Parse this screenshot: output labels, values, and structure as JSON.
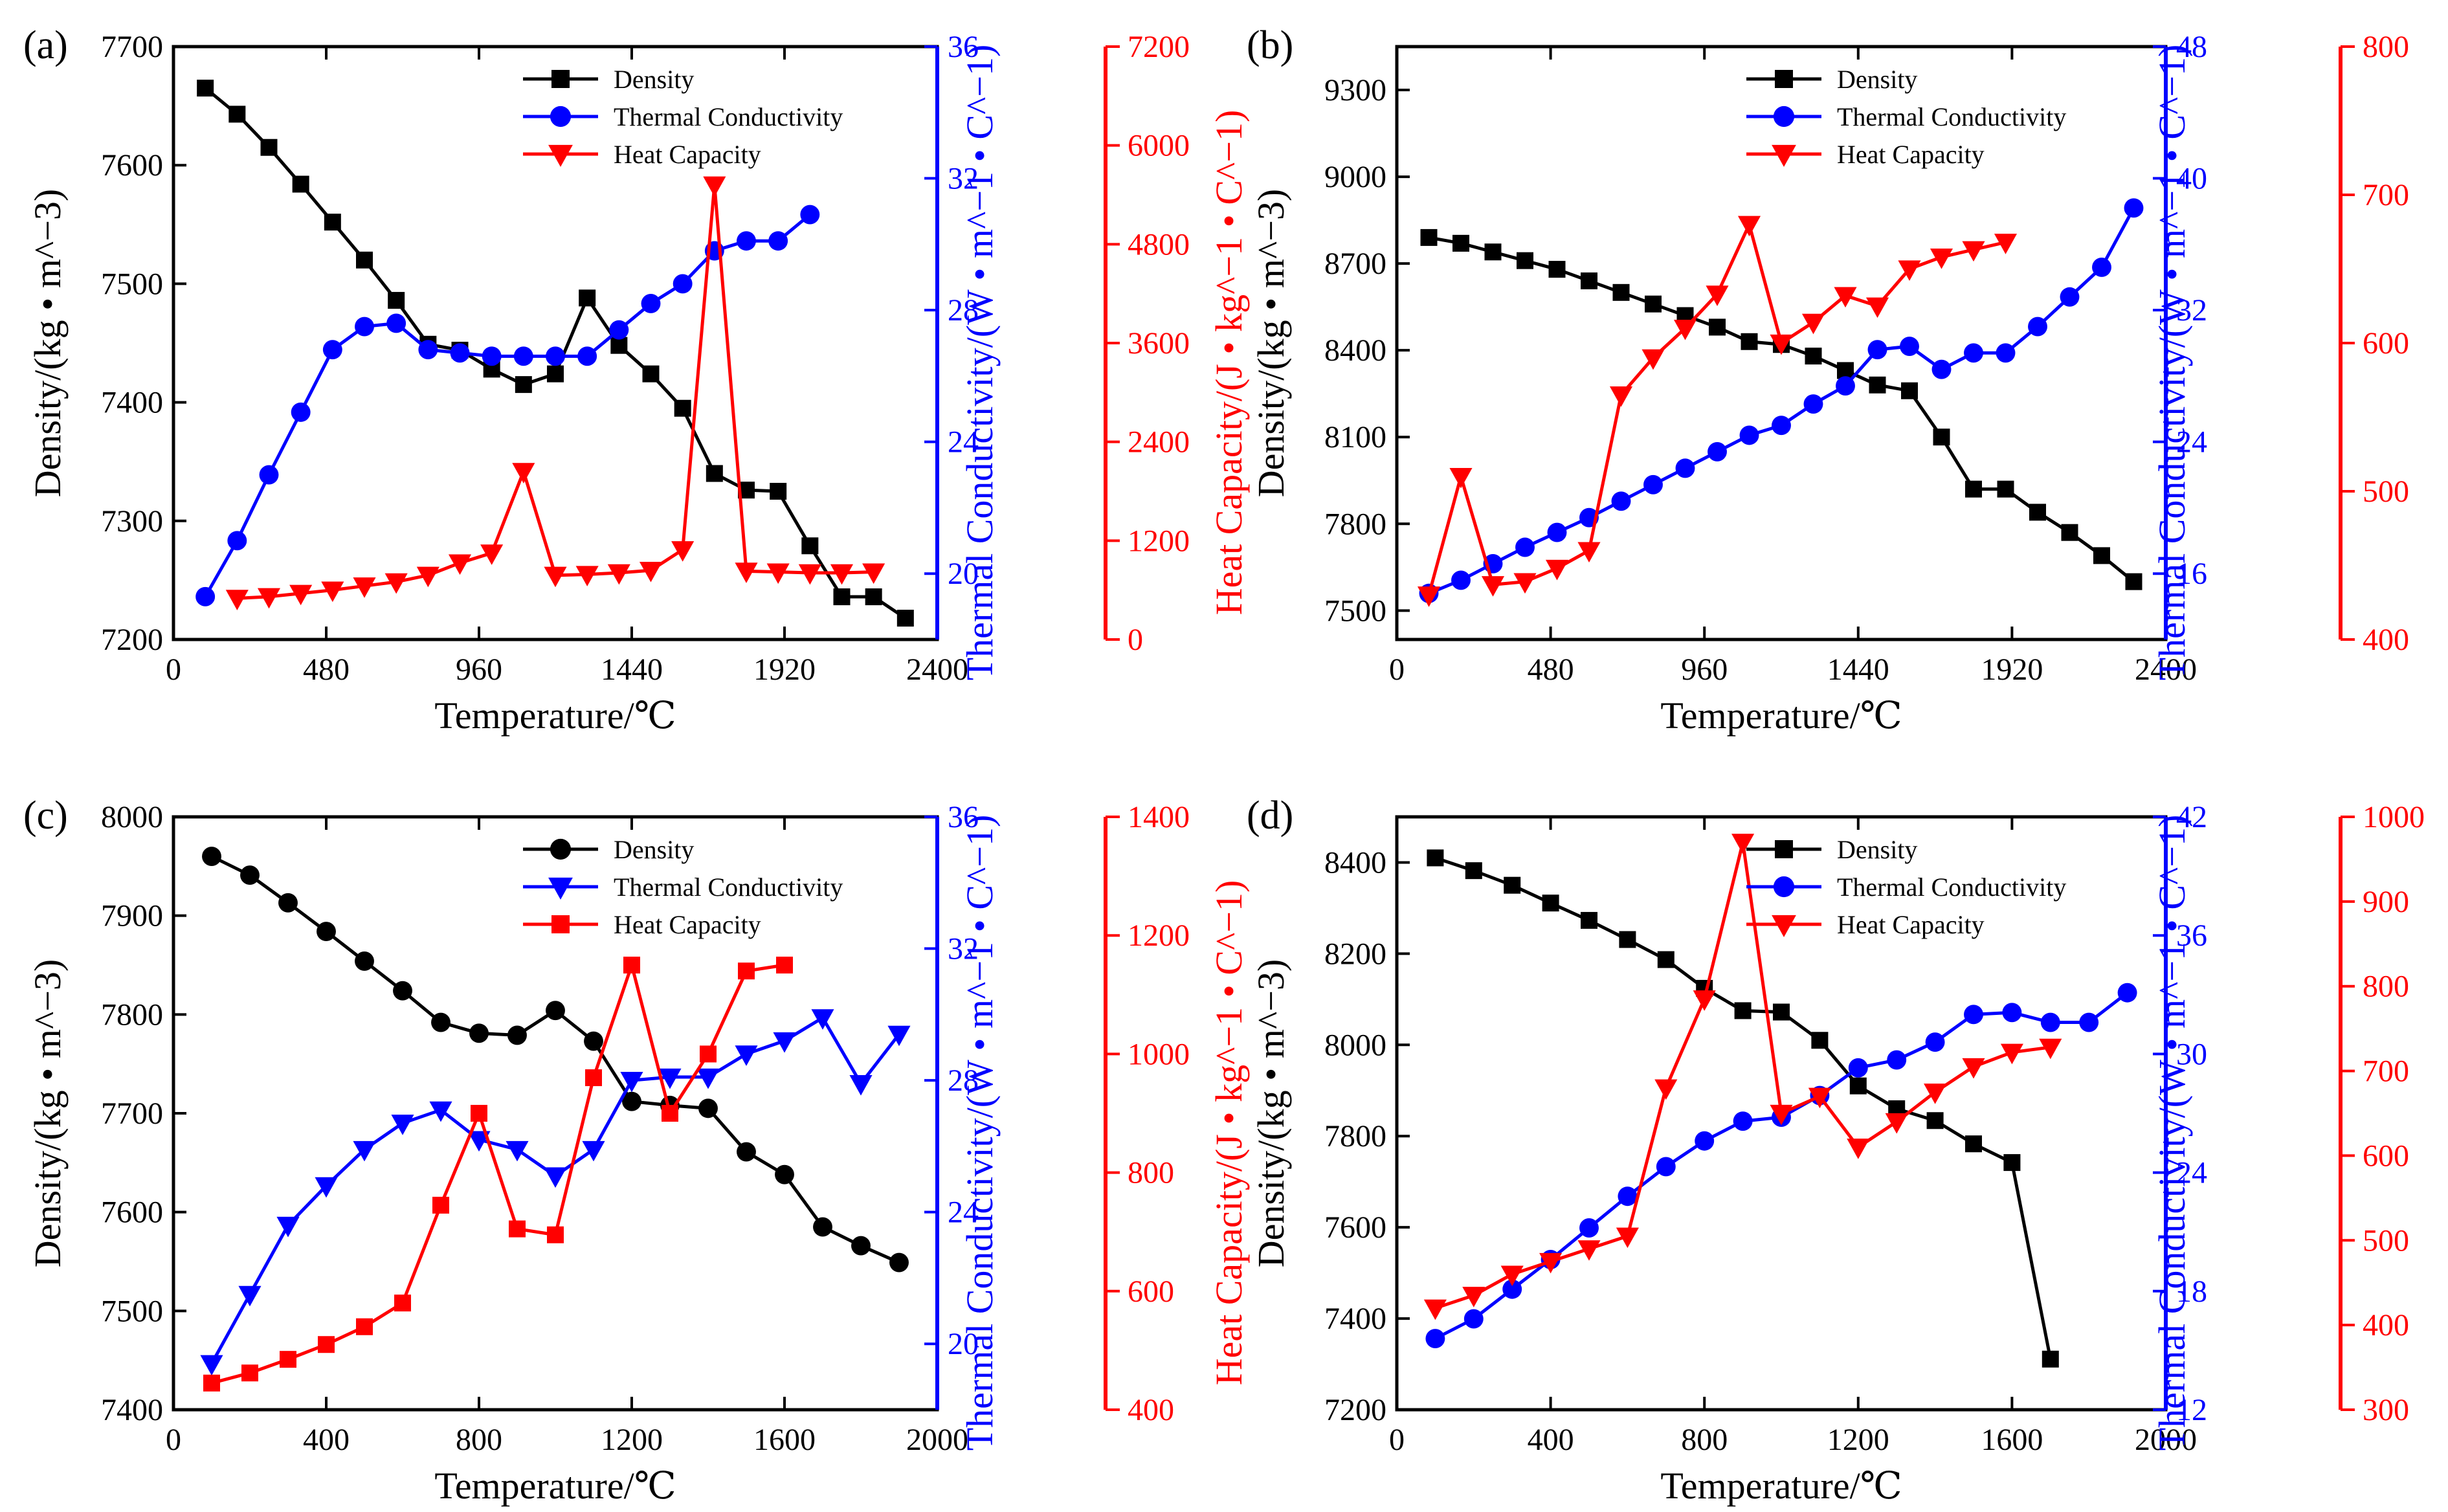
{
  "figure": {
    "colors": {
      "density": "#000000",
      "conductivity": "#0000ff",
      "capacity": "#ff0000"
    },
    "markers": {
      "density": "square",
      "conductivity": "circle",
      "capacity": "triangle-down"
    }
  },
  "chart_data": [
    {
      "panel": "(a)",
      "type": "line",
      "title": "",
      "xlabel": "Temperature/℃",
      "xlim": [
        0,
        2400
      ],
      "xticks": [
        0,
        480,
        960,
        1440,
        1920,
        2400
      ],
      "legend_position": "top-center",
      "series": [
        {
          "name": "Density",
          "axis": "y1",
          "marker": "square",
          "color": "#000000",
          "label": "Density/(kg • m^−3)",
          "lim": [
            7200,
            7700
          ],
          "ticks": [
            7200,
            7300,
            7400,
            7500,
            7600,
            7700
          ],
          "x": [
            100,
            200,
            300,
            400,
            500,
            600,
            700,
            800,
            900,
            1000,
            1100,
            1200,
            1300,
            1400,
            1500,
            1600,
            1700,
            1800,
            1900,
            2000,
            2100,
            2200,
            2300
          ],
          "y": [
            7665,
            7643,
            7615,
            7584,
            7552,
            7520,
            7486,
            7449,
            7444,
            7428,
            7415,
            7424,
            7488,
            7448,
            7424,
            7395,
            7340,
            7326,
            7325,
            7279,
            7236,
            7236,
            7218
          ]
        },
        {
          "name": "Thermal Conductivity",
          "axis": "y2",
          "marker": "circle",
          "color": "#0000ff",
          "label": "Thermal Conductivity/(W • m^−1 • C^−1)",
          "lim": [
            18,
            36
          ],
          "ticks": [
            20,
            24,
            28,
            32,
            36
          ],
          "x": [
            100,
            200,
            300,
            400,
            500,
            600,
            700,
            800,
            900,
            1000,
            1100,
            1200,
            1300,
            1400,
            1500,
            1600,
            1700,
            1800,
            1900,
            2000
          ],
          "y": [
            19.3,
            21.0,
            23.0,
            24.9,
            26.8,
            27.5,
            27.6,
            26.8,
            26.7,
            26.6,
            26.6,
            26.6,
            26.6,
            27.4,
            28.2,
            28.8,
            29.8,
            30.1,
            30.1,
            30.9
          ]
        },
        {
          "name": "Heat Capacity",
          "axis": "y3",
          "marker": "triangle-down",
          "color": "#ff0000",
          "label": "Heat Capacity/(J • kg^−1 • C^−1)",
          "lim": [
            0,
            7200
          ],
          "ticks": [
            0,
            1200,
            2400,
            3600,
            4800,
            6000,
            7200
          ],
          "x": [
            200,
            300,
            400,
            500,
            600,
            700,
            800,
            900,
            1000,
            1100,
            1200,
            1300,
            1400,
            1500,
            1600,
            1700,
            1800,
            1900,
            2000,
            2100,
            2200
          ],
          "y": [
            500,
            520,
            560,
            600,
            650,
            700,
            780,
            930,
            1050,
            2040,
            780,
            790,
            810,
            840,
            1090,
            5520,
            830,
            820,
            810,
            810,
            820
          ]
        }
      ]
    },
    {
      "panel": "(b)",
      "type": "line",
      "title": "",
      "xlabel": "Temperature/℃",
      "xlim": [
        0,
        2400
      ],
      "xticks": [
        0,
        480,
        960,
        1440,
        1920,
        2400
      ],
      "legend_position": "top-center",
      "series": [
        {
          "name": "Density",
          "axis": "y1",
          "marker": "square",
          "color": "#000000",
          "label": "Density/(kg • m^−3)",
          "lim": [
            7400,
            9450
          ],
          "ticks": [
            7500,
            7800,
            8100,
            8400,
            8700,
            9000,
            9300
          ],
          "x": [
            100,
            200,
            300,
            400,
            500,
            600,
            700,
            800,
            900,
            1000,
            1100,
            1200,
            1300,
            1400,
            1500,
            1600,
            1700,
            1800,
            1900,
            2000,
            2100,
            2200,
            2300
          ],
          "y": [
            8790,
            8770,
            8740,
            8710,
            8680,
            8640,
            8600,
            8560,
            8520,
            8480,
            8430,
            8420,
            8380,
            8330,
            8280,
            8260,
            8100,
            7920,
            7920,
            7840,
            7770,
            7690,
            7600
          ]
        },
        {
          "name": "Thermal Conductivity",
          "axis": "y2",
          "marker": "circle",
          "color": "#0000ff",
          "label": "Thermal Conductivity/(W • m^−1 • C^−1)",
          "lim": [
            12,
            48
          ],
          "ticks": [
            16,
            24,
            32,
            40,
            48
          ],
          "x": [
            100,
            200,
            300,
            400,
            500,
            600,
            700,
            800,
            900,
            1000,
            1100,
            1200,
            1300,
            1400,
            1500,
            1600,
            1700,
            1800,
            1900,
            2000,
            2100,
            2200,
            2300
          ],
          "y": [
            14.8,
            15.6,
            16.6,
            17.6,
            18.5,
            19.4,
            20.4,
            21.4,
            22.4,
            23.4,
            24.4,
            25.0,
            26.3,
            27.4,
            29.6,
            29.8,
            28.4,
            29.4,
            29.4,
            31.0,
            32.8,
            34.6,
            38.2
          ]
        },
        {
          "name": "Heat Capacity",
          "axis": "y3",
          "marker": "triangle-down",
          "color": "#ff0000",
          "label": "Heat Capacity/(J • kg^−1 • C^−1)",
          "lim": [
            400,
            800
          ],
          "ticks": [
            400,
            500,
            600,
            700,
            800
          ],
          "x": [
            100,
            200,
            300,
            400,
            500,
            600,
            700,
            800,
            900,
            1000,
            1100,
            1200,
            1300,
            1400,
            1500,
            1600,
            1700,
            1800,
            1900
          ],
          "y": [
            430,
            510,
            437,
            439,
            448,
            460,
            565,
            590,
            610,
            633,
            680,
            600,
            614,
            632,
            625,
            650,
            658,
            663,
            668
          ]
        }
      ]
    },
    {
      "panel": "(c)",
      "type": "line",
      "title": "",
      "xlabel": "Temperature/℃",
      "xlim": [
        0,
        2000
      ],
      "xticks": [
        0,
        400,
        800,
        1200,
        1600,
        2000
      ],
      "legend_position": "top-center",
      "series": [
        {
          "name": "Density",
          "axis": "y1",
          "marker": "circle",
          "color": "#000000",
          "label": "Density/(kg • m^−3)",
          "lim": [
            7400,
            8000
          ],
          "ticks": [
            7400,
            7500,
            7600,
            7700,
            7800,
            7900,
            8000
          ],
          "x": [
            100,
            200,
            300,
            400,
            500,
            600,
            700,
            800,
            900,
            1000,
            1100,
            1200,
            1300,
            1400,
            1500,
            1600,
            1700,
            1800,
            1900
          ],
          "y": [
            7960,
            7941,
            7913,
            7884,
            7854,
            7824,
            7792,
            7781,
            7779,
            7804,
            7773,
            7712,
            7708,
            7705,
            7661,
            7638,
            7585,
            7566,
            7549
          ]
        },
        {
          "name": "Thermal Conductivity",
          "axis": "y2",
          "marker": "triangle-down",
          "color": "#0000ff",
          "label": "Thermal Conductivity/(W • m^−1 • C^−1)",
          "lim": [
            18,
            36
          ],
          "ticks": [
            20,
            24,
            28,
            32,
            36
          ],
          "x": [
            100,
            200,
            300,
            400,
            500,
            600,
            700,
            800,
            900,
            1000,
            1100,
            1200,
            1300,
            1400,
            1500,
            1600,
            1700,
            1800,
            1900
          ],
          "y": [
            19.4,
            21.5,
            23.6,
            24.8,
            25.9,
            26.7,
            27.1,
            26.2,
            25.9,
            25.1,
            25.9,
            28.0,
            28.1,
            28.1,
            28.8,
            29.2,
            29.9,
            27.9,
            29.4
          ]
        },
        {
          "name": "Heat Capacity",
          "axis": "y3",
          "marker": "square",
          "color": "#ff0000",
          "label": "Heat Capacity/(J • kg^−1 • C^−1)",
          "lim": [
            400,
            1400
          ],
          "ticks": [
            400,
            600,
            800,
            1000,
            1200,
            1400
          ],
          "x": [
            100,
            200,
            300,
            400,
            500,
            600,
            700,
            800,
            900,
            1000,
            1100,
            1200,
            1300,
            1400,
            1500,
            1600
          ],
          "y": [
            445,
            462,
            485,
            510,
            540,
            580,
            745,
            900,
            705,
            695,
            960,
            1150,
            900,
            1000,
            1140,
            1150
          ]
        }
      ]
    },
    {
      "panel": "(d)",
      "type": "line",
      "title": "",
      "xlabel": "Temperature/℃",
      "xlim": [
        0,
        2000
      ],
      "xticks": [
        0,
        400,
        800,
        1200,
        1600,
        2000
      ],
      "legend_position": "top-center",
      "series": [
        {
          "name": "Density",
          "axis": "y1",
          "marker": "square",
          "color": "#000000",
          "label": "Density/(kg • m^−3)",
          "lim": [
            7200,
            8500
          ],
          "ticks": [
            7200,
            7400,
            7600,
            7800,
            8000,
            8200,
            8400
          ],
          "x": [
            100,
            200,
            300,
            400,
            500,
            600,
            700,
            800,
            900,
            1000,
            1100,
            1200,
            1300,
            1400,
            1500,
            1600,
            1700
          ],
          "y": [
            8410,
            8382,
            8350,
            8311,
            8273,
            8231,
            8187,
            8124,
            8075,
            8072,
            8010,
            7910,
            7860,
            7834,
            7783,
            7742,
            7311
          ]
        },
        {
          "name": "Thermal Conductivity",
          "axis": "y2",
          "marker": "circle",
          "color": "#0000ff",
          "label": "Thermal Conductivity/(W • m^−1 • C^−1)",
          "lim": [
            12,
            42
          ],
          "ticks": [
            12,
            18,
            24,
            30,
            36,
            42
          ],
          "x": [
            100,
            200,
            300,
            400,
            500,
            600,
            700,
            800,
            900,
            1000,
            1100,
            1200,
            1300,
            1400,
            1500,
            1600,
            1700,
            1800,
            1900
          ],
          "y": [
            15.6,
            16.6,
            18.1,
            19.6,
            21.2,
            22.8,
            24.3,
            25.6,
            26.6,
            26.8,
            27.9,
            29.3,
            29.7,
            30.6,
            32.0,
            32.1,
            31.6,
            31.6,
            33.1
          ]
        },
        {
          "name": "Heat Capacity",
          "axis": "y3",
          "marker": "triangle-down",
          "color": "#ff0000",
          "label": "Heat Capacity/(J • kg^−1 • C^−1)",
          "lim": [
            300,
            1000
          ],
          "ticks": [
            300,
            400,
            500,
            600,
            700,
            800,
            900,
            1000
          ],
          "x": [
            100,
            200,
            300,
            400,
            500,
            600,
            700,
            800,
            900,
            1000,
            1100,
            1200,
            1300,
            1400,
            1500,
            1600,
            1700
          ],
          "y": [
            420,
            435,
            460,
            475,
            490,
            505,
            680,
            785,
            970,
            650,
            670,
            610,
            640,
            675,
            705,
            722,
            728
          ]
        }
      ]
    }
  ]
}
